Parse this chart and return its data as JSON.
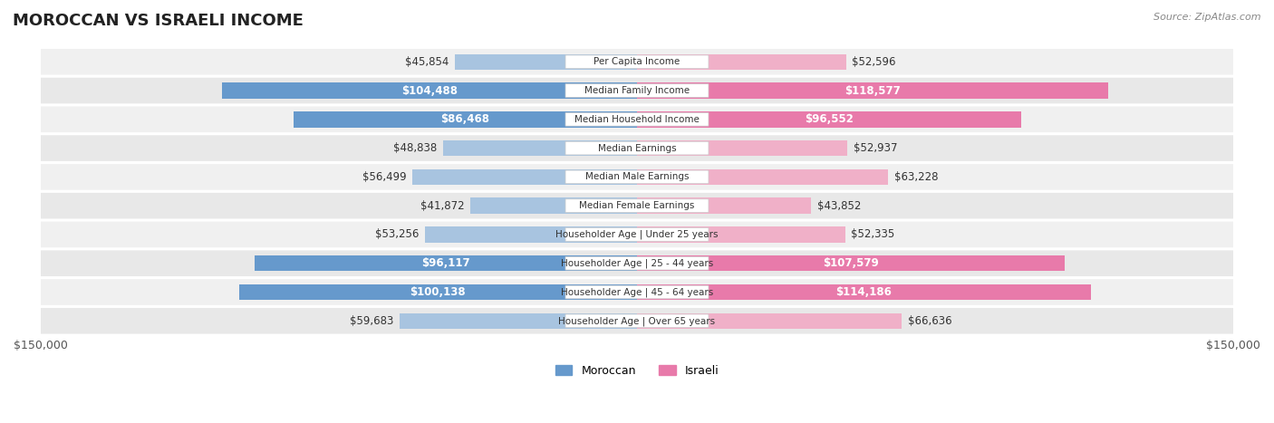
{
  "title": "MOROCCAN VS ISRAELI INCOME",
  "source": "Source: ZipAtlas.com",
  "categories": [
    "Per Capita Income",
    "Median Family Income",
    "Median Household Income",
    "Median Earnings",
    "Median Male Earnings",
    "Median Female Earnings",
    "Householder Age | Under 25 years",
    "Householder Age | 25 - 44 years",
    "Householder Age | 45 - 64 years",
    "Householder Age | Over 65 years"
  ],
  "moroccan_values": [
    45854,
    104488,
    86468,
    48838,
    56499,
    41872,
    53256,
    96117,
    100138,
    59683
  ],
  "israeli_values": [
    52596,
    118577,
    96552,
    52937,
    63228,
    43852,
    52335,
    107579,
    114186,
    66636
  ],
  "moroccan_labels": [
    "$45,854",
    "$104,488",
    "$86,468",
    "$48,838",
    "$56,499",
    "$41,872",
    "$53,256",
    "$96,117",
    "$100,138",
    "$59,683"
  ],
  "israeli_labels": [
    "$52,596",
    "$118,577",
    "$96,552",
    "$52,937",
    "$63,228",
    "$43,852",
    "$52,335",
    "$107,579",
    "$114,186",
    "$66,636"
  ],
  "moroccan_color_light": "#a8c4e0",
  "moroccan_color_dark": "#6699cc",
  "israeli_color_light": "#f0b0c8",
  "israeli_color_dark": "#e87aaa",
  "max_value": 150000,
  "row_bg_color": "#f0f0f0",
  "background_color": "#ffffff",
  "label_fontsize": 8.5,
  "title_fontsize": 13,
  "legend_fontsize": 9,
  "threshold_for_inside_label": 80000
}
